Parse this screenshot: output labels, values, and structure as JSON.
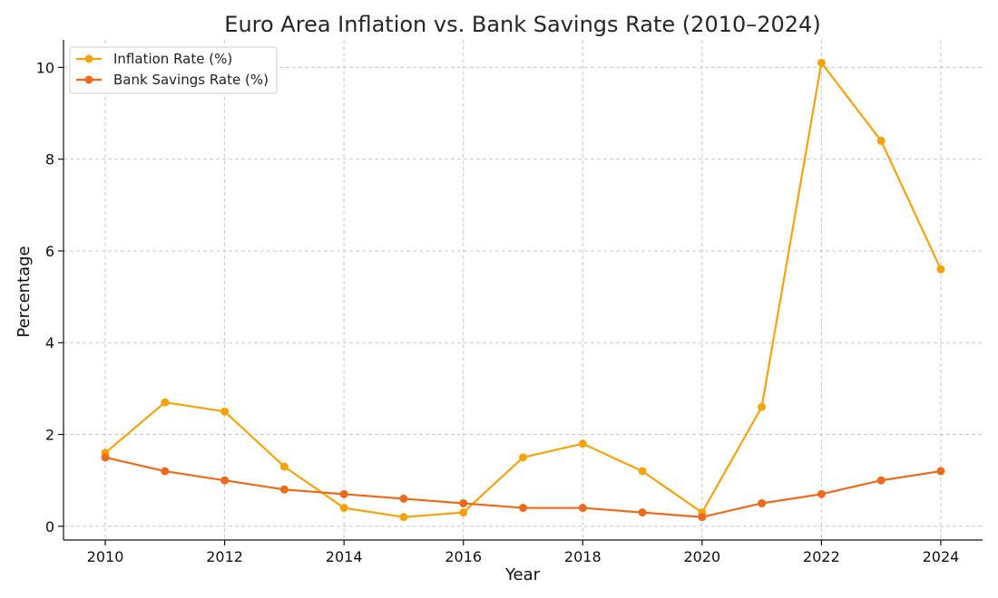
{
  "chart_data": {
    "type": "line",
    "title": "Euro Area Inflation vs. Bank Savings Rate (2010–2024)",
    "xlabel": "Year",
    "ylabel": "Percentage",
    "x": [
      2010,
      2011,
      2012,
      2013,
      2014,
      2015,
      2016,
      2017,
      2018,
      2019,
      2020,
      2021,
      2022,
      2023,
      2024
    ],
    "xlim": [
      2009.3,
      2024.7
    ],
    "ylim": [
      -0.3,
      10.6
    ],
    "xticks": [
      2010,
      2012,
      2014,
      2016,
      2018,
      2020,
      2022,
      2024
    ],
    "yticks": [
      0,
      2,
      4,
      6,
      8,
      10
    ],
    "grid": true,
    "legend_position": "top-left",
    "series": [
      {
        "name": "Inflation Rate (%)",
        "color": "#f5a30a",
        "values": [
          1.6,
          2.7,
          2.5,
          1.3,
          0.4,
          0.2,
          0.3,
          1.5,
          1.8,
          1.2,
          0.3,
          2.6,
          10.1,
          8.4,
          5.6
        ]
      },
      {
        "name": "Bank Savings Rate (%)",
        "color": "#ec6a1c",
        "values": [
          1.5,
          1.2,
          1.0,
          0.8,
          0.7,
          0.6,
          0.5,
          0.4,
          0.4,
          0.3,
          0.2,
          0.5,
          0.7,
          1.0,
          1.2
        ]
      }
    ]
  }
}
